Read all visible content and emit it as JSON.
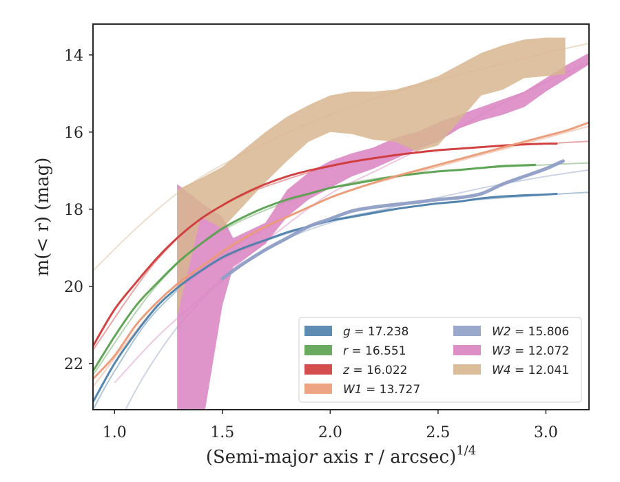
{
  "chart_data": {
    "type": "line",
    "xlabel": "(Semi-major axis r / arcsec)",
    "xlabel_var": "r",
    "xlabel_exp": "1/4",
    "ylabel": "m(< r) (mag)",
    "xlim": [
      0.9,
      3.2
    ],
    "ylim": [
      23.2,
      13.2
    ],
    "y_inverted": true,
    "xticks": [
      1.0,
      1.5,
      2.0,
      2.5,
      3.0
    ],
    "xtick_labels": [
      "1.0",
      "1.5",
      "2.0",
      "2.5",
      "3.0"
    ],
    "yticks": [
      14,
      16,
      18,
      20,
      22
    ],
    "ytick_labels": [
      "14",
      "16",
      "18",
      "20",
      "22"
    ],
    "grid": false,
    "legend_position": "lower-right",
    "series": [
      {
        "name": "g = 17.238",
        "var": "g",
        "value": "17.238",
        "color": "#4c7fab",
        "data": [
          [
            0.9,
            23.0
          ],
          [
            1.0,
            22.0
          ],
          [
            1.1,
            21.2
          ],
          [
            1.2,
            20.5
          ],
          [
            1.3,
            20.0
          ],
          [
            1.4,
            19.6
          ],
          [
            1.5,
            19.25
          ],
          [
            1.6,
            19.0
          ],
          [
            1.7,
            18.8
          ],
          [
            1.8,
            18.6
          ],
          [
            1.9,
            18.45
          ],
          [
            2.0,
            18.3
          ],
          [
            2.1,
            18.2
          ],
          [
            2.2,
            18.1
          ],
          [
            2.3,
            18.0
          ],
          [
            2.4,
            17.92
          ],
          [
            2.5,
            17.85
          ],
          [
            2.6,
            17.8
          ],
          [
            2.7,
            17.72
          ],
          [
            2.8,
            17.67
          ],
          [
            2.9,
            17.64
          ],
          [
            3.0,
            17.62
          ],
          [
            3.05,
            17.6
          ]
        ],
        "extrapolation": [
          [
            0.9,
            23.2
          ],
          [
            1.0,
            22.2
          ],
          [
            1.2,
            20.6
          ],
          [
            1.5,
            19.3
          ],
          [
            2.0,
            18.3
          ],
          [
            2.5,
            17.85
          ],
          [
            3.0,
            17.63
          ],
          [
            3.2,
            17.56
          ]
        ]
      },
      {
        "name": "r = 16.551",
        "var": "r",
        "value": "16.551",
        "color": "#59a14f",
        "data": [
          [
            0.9,
            22.2
          ],
          [
            1.0,
            21.3
          ],
          [
            1.1,
            20.5
          ],
          [
            1.2,
            19.9
          ],
          [
            1.3,
            19.35
          ],
          [
            1.4,
            18.9
          ],
          [
            1.5,
            18.5
          ],
          [
            1.6,
            18.2
          ],
          [
            1.7,
            17.95
          ],
          [
            1.8,
            17.75
          ],
          [
            1.9,
            17.6
          ],
          [
            2.0,
            17.45
          ],
          [
            2.1,
            17.35
          ],
          [
            2.2,
            17.25
          ],
          [
            2.3,
            17.15
          ],
          [
            2.4,
            17.08
          ],
          [
            2.5,
            17.02
          ],
          [
            2.6,
            16.98
          ],
          [
            2.7,
            16.93
          ],
          [
            2.8,
            16.88
          ],
          [
            2.9,
            16.86
          ],
          [
            2.95,
            16.85
          ]
        ],
        "extrapolation": [
          [
            0.9,
            22.3
          ],
          [
            1.2,
            19.95
          ],
          [
            1.5,
            18.55
          ],
          [
            2.0,
            17.45
          ],
          [
            2.5,
            17.02
          ],
          [
            3.0,
            16.85
          ],
          [
            3.2,
            16.8
          ]
        ]
      },
      {
        "name": "z = 16.022",
        "var": "z",
        "value": "16.022",
        "color": "#d03a3a",
        "data": [
          [
            0.9,
            21.55
          ],
          [
            1.0,
            20.6
          ],
          [
            1.1,
            19.9
          ],
          [
            1.2,
            19.25
          ],
          [
            1.3,
            18.7
          ],
          [
            1.4,
            18.25
          ],
          [
            1.5,
            17.9
          ],
          [
            1.6,
            17.6
          ],
          [
            1.7,
            17.35
          ],
          [
            1.8,
            17.15
          ],
          [
            1.9,
            17.0
          ],
          [
            2.0,
            16.88
          ],
          [
            2.1,
            16.77
          ],
          [
            2.2,
            16.68
          ],
          [
            2.3,
            16.6
          ],
          [
            2.4,
            16.53
          ],
          [
            2.5,
            16.47
          ],
          [
            2.6,
            16.43
          ],
          [
            2.7,
            16.39
          ],
          [
            2.8,
            16.35
          ],
          [
            2.9,
            16.32
          ],
          [
            3.0,
            16.3
          ],
          [
            3.05,
            16.3
          ]
        ],
        "extrapolation": [
          [
            0.9,
            21.65
          ],
          [
            1.2,
            19.3
          ],
          [
            1.5,
            17.9
          ],
          [
            2.0,
            16.9
          ],
          [
            2.5,
            16.48
          ],
          [
            3.0,
            16.3
          ],
          [
            3.2,
            16.24
          ]
        ]
      },
      {
        "name": "W1 = 13.727",
        "var": "W1",
        "value": "13.727",
        "color": "#eb9a76",
        "data": [
          [
            0.9,
            22.4
          ],
          [
            1.0,
            21.8
          ],
          [
            1.1,
            21.0
          ],
          [
            1.2,
            20.4
          ],
          [
            1.3,
            19.9
          ],
          [
            1.4,
            19.5
          ],
          [
            1.5,
            19.1
          ],
          [
            1.6,
            18.75
          ],
          [
            1.7,
            18.45
          ],
          [
            1.8,
            18.2
          ],
          [
            1.9,
            17.95
          ],
          [
            2.0,
            17.7
          ],
          [
            2.1,
            17.5
          ],
          [
            2.2,
            17.32
          ],
          [
            2.3,
            17.15
          ],
          [
            2.4,
            17.0
          ],
          [
            2.5,
            16.85
          ],
          [
            2.6,
            16.7
          ],
          [
            2.7,
            16.55
          ],
          [
            2.8,
            16.4
          ],
          [
            2.9,
            16.25
          ],
          [
            3.0,
            16.1
          ],
          [
            3.1,
            15.95
          ],
          [
            3.2,
            15.75
          ]
        ],
        "extrapolation": [
          [
            0.9,
            22.6
          ],
          [
            1.2,
            20.5
          ],
          [
            1.5,
            19.15
          ],
          [
            2.0,
            17.7
          ],
          [
            2.5,
            16.9
          ],
          [
            3.0,
            16.15
          ],
          [
            3.2,
            15.85
          ]
        ]
      },
      {
        "name": "W2 = 15.806",
        "var": "W2",
        "value": "15.806",
        "color": "#8f9ec6",
        "data": [
          [
            1.5,
            19.8
          ],
          [
            1.6,
            19.4
          ],
          [
            1.7,
            19.05
          ],
          [
            1.8,
            18.75
          ],
          [
            1.9,
            18.45
          ],
          [
            2.0,
            18.25
          ],
          [
            2.1,
            18.05
          ],
          [
            2.2,
            17.95
          ],
          [
            2.3,
            17.88
          ],
          [
            2.4,
            17.82
          ],
          [
            2.5,
            17.75
          ],
          [
            2.6,
            17.7
          ],
          [
            2.7,
            17.6
          ],
          [
            2.8,
            17.35
          ],
          [
            2.9,
            17.15
          ],
          [
            3.0,
            16.95
          ],
          [
            3.08,
            16.75
          ]
        ],
        "extrapolation": [
          [
            1.05,
            23.2
          ],
          [
            1.15,
            22.2
          ],
          [
            1.3,
            21.0
          ],
          [
            1.5,
            19.85
          ],
          [
            1.75,
            18.9
          ],
          [
            2.0,
            18.35
          ],
          [
            2.25,
            18.0
          ],
          [
            2.5,
            17.7
          ],
          [
            2.75,
            17.4
          ],
          [
            3.0,
            17.15
          ],
          [
            3.2,
            16.98
          ]
        ]
      },
      {
        "name": "W3 = 12.072",
        "var": "W3",
        "value": "12.072",
        "color": "#d982bf",
        "band": [
          [
            1.29,
            17.35,
            23.2
          ],
          [
            1.42,
            17.9,
            23.2
          ],
          [
            1.5,
            18.2,
            20.5
          ],
          [
            1.55,
            18.75,
            19.5
          ],
          [
            1.7,
            18.35,
            18.9
          ],
          [
            1.8,
            17.5,
            18.2
          ],
          [
            1.9,
            17.05,
            17.75
          ],
          [
            2.0,
            16.75,
            17.45
          ],
          [
            2.1,
            16.55,
            17.15
          ],
          [
            2.2,
            16.4,
            16.95
          ],
          [
            2.3,
            16.15,
            16.7
          ],
          [
            2.4,
            16.0,
            16.45
          ],
          [
            2.5,
            15.75,
            16.25
          ],
          [
            2.6,
            15.55,
            15.9
          ],
          [
            2.7,
            15.35,
            15.7
          ],
          [
            2.8,
            15.15,
            15.55
          ],
          [
            2.9,
            14.95,
            15.35
          ],
          [
            3.0,
            14.6,
            14.95
          ],
          [
            3.1,
            14.25,
            14.6
          ],
          [
            3.2,
            13.95,
            14.25
          ]
        ],
        "extrapolation": [
          [
            1.0,
            22.5
          ],
          [
            1.2,
            21.3
          ],
          [
            1.4,
            20.3
          ],
          [
            1.6,
            19.3
          ],
          [
            1.8,
            18.4
          ],
          [
            2.0,
            17.6
          ],
          [
            2.25,
            16.9
          ],
          [
            2.5,
            16.2
          ],
          [
            2.75,
            15.4
          ],
          [
            3.0,
            14.7
          ],
          [
            3.2,
            14.2
          ]
        ]
      },
      {
        "name": "W4 = 12.041",
        "var": "W4",
        "value": "12.041",
        "color": "#d8b68f",
        "band": [
          [
            1.29,
            17.5,
            20.8
          ],
          [
            1.4,
            17.2,
            18.2
          ],
          [
            1.5,
            16.9,
            18.5
          ],
          [
            1.6,
            16.45,
            17.9
          ],
          [
            1.7,
            16.0,
            17.3
          ],
          [
            1.8,
            15.6,
            16.75
          ],
          [
            1.9,
            15.3,
            16.25
          ],
          [
            2.0,
            15.05,
            16.0
          ],
          [
            2.1,
            14.95,
            16.05
          ],
          [
            2.2,
            14.95,
            16.2
          ],
          [
            2.3,
            14.9,
            16.25
          ],
          [
            2.4,
            14.75,
            16.5
          ],
          [
            2.5,
            14.55,
            16.35
          ],
          [
            2.6,
            14.25,
            15.7
          ],
          [
            2.7,
            13.95,
            15.05
          ],
          [
            2.8,
            13.75,
            14.9
          ],
          [
            2.9,
            13.6,
            14.6
          ],
          [
            3.0,
            13.55,
            14.55
          ],
          [
            3.09,
            13.55,
            14.5
          ]
        ],
        "extrapolation": [
          [
            0.9,
            19.6
          ],
          [
            1.1,
            18.5
          ],
          [
            1.3,
            17.55
          ],
          [
            1.5,
            16.85
          ],
          [
            1.75,
            16.15
          ],
          [
            2.0,
            15.55
          ],
          [
            2.25,
            15.05
          ],
          [
            2.5,
            14.65
          ],
          [
            2.75,
            14.3
          ],
          [
            3.0,
            13.95
          ],
          [
            3.2,
            13.7
          ]
        ]
      }
    ]
  }
}
